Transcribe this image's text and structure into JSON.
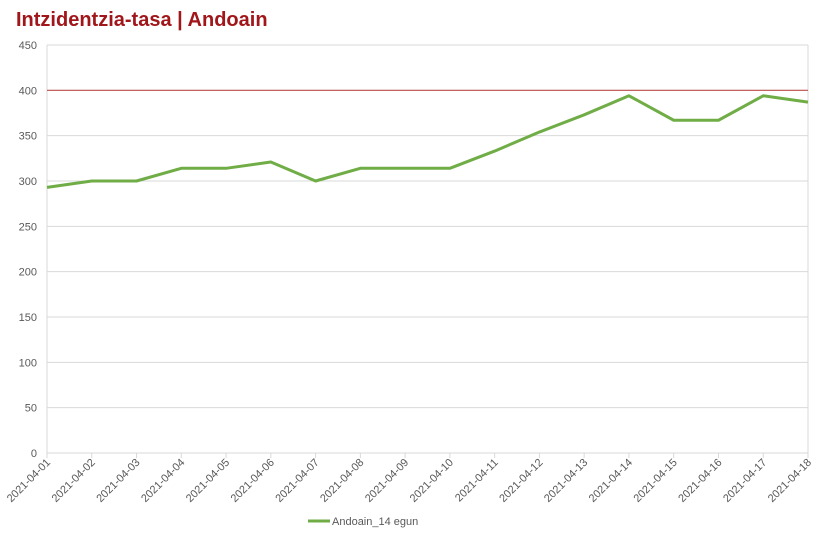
{
  "chart_data": {
    "type": "line",
    "title": "Intzidentzia-tasa | Andoain",
    "categories": [
      "2021-04-01",
      "2021-04-02",
      "2021-04-03",
      "2021-04-04",
      "2021-04-05",
      "2021-04-06",
      "2021-04-07",
      "2021-04-08",
      "2021-04-09",
      "2021-04-10",
      "2021-04-11",
      "2021-04-12",
      "2021-04-13",
      "2021-04-14",
      "2021-04-15",
      "2021-04-16",
      "2021-04-17",
      "2021-04-18"
    ],
    "series": [
      {
        "name": "Andoain_14 egun",
        "color": "#70ad47",
        "values": [
          293,
          300,
          300,
          314,
          314,
          321,
          300,
          314,
          314,
          314,
          333,
          354,
          373,
          394,
          367,
          367,
          394,
          387
        ]
      }
    ],
    "reference_line": {
      "value": 400,
      "color": "#c0504d"
    },
    "ylim": [
      0,
      450
    ],
    "yticks": [
      0,
      50,
      100,
      150,
      200,
      250,
      300,
      350,
      400,
      450
    ],
    "grid": true,
    "legend": "bottom"
  }
}
